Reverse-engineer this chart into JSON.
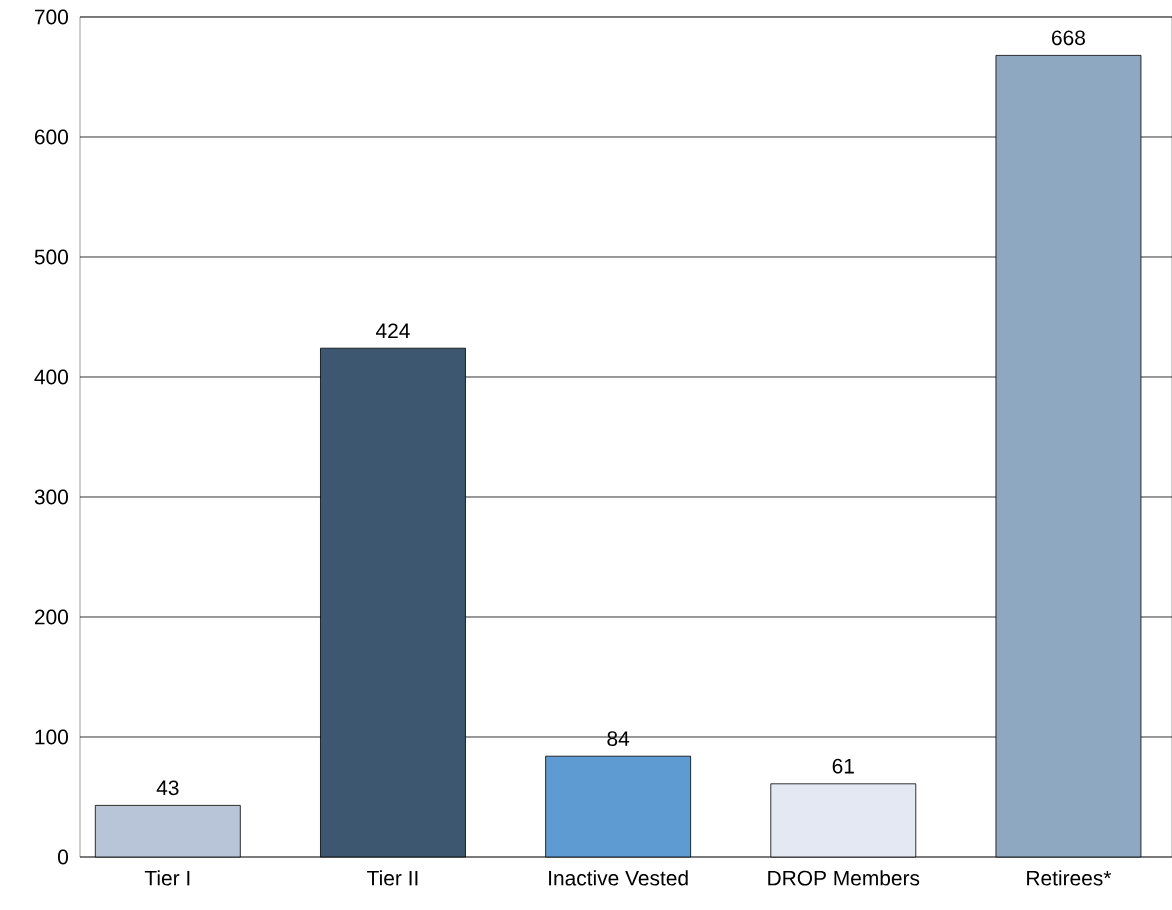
{
  "chart_data": {
    "type": "bar",
    "categories": [
      "Tier I",
      "Tier II",
      "Inactive Vested",
      "DROP Members",
      "Retirees*"
    ],
    "values": [
      43,
      424,
      84,
      61,
      668
    ],
    "colors": [
      "#b8c4d8",
      "#3d5770",
      "#5e9bd3",
      "#e4e8f2",
      "#8fa8c1"
    ],
    "data_labels": true,
    "ylim": [
      0,
      700
    ],
    "yticks": [
      0,
      100,
      200,
      300,
      400,
      500,
      600,
      700
    ],
    "grid": "y"
  }
}
